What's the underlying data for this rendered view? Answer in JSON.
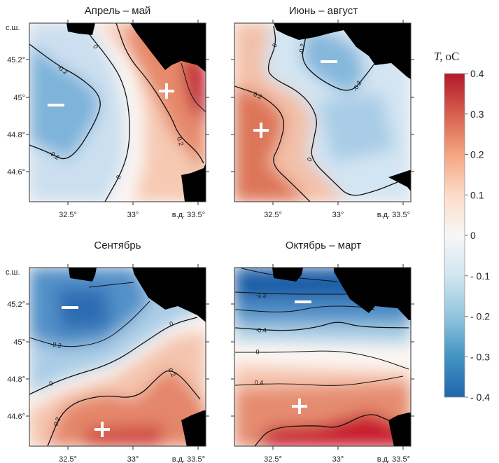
{
  "figure": {
    "panels": [
      {
        "title": "Апрель – май",
        "contour_labels": [
          "0",
          "-0.2",
          "-0.2",
          "0.2",
          "0"
        ],
        "signs": [
          "−",
          "+"
        ]
      },
      {
        "title": "Июнь – август",
        "contour_labels": [
          "0",
          "-0.2",
          "-0.2",
          "0.2",
          "0"
        ],
        "signs": [
          "−",
          "+"
        ]
      },
      {
        "title": "Сентябрь",
        "contour_labels": [
          "-0.2",
          "0",
          "0.2",
          "0",
          "0.2"
        ],
        "signs": [
          "−",
          "+"
        ]
      },
      {
        "title": "Октябрь – март",
        "contour_labels": [
          "-1.2",
          "-0.4",
          "0",
          "0.4"
        ],
        "signs": [
          "−",
          "+"
        ]
      }
    ],
    "lat_axis": {
      "unit_label": "с.ш.",
      "ticks": [
        "45.2°",
        "45°",
        "44.8°",
        "44.6°"
      ]
    },
    "lon_axis": {
      "ticks": [
        "32.5°",
        "33°",
        "в.д. 33.5°"
      ]
    },
    "colorbar": {
      "title_var": "T,",
      "title_unit": "oC",
      "range": [
        -0.4,
        0.4
      ],
      "ticks": [
        "0.4",
        "0.3",
        "0.2",
        "0.1",
        "0",
        "- 0.1",
        "- 0.2",
        "- 0.3",
        "- 0.4"
      ],
      "colors": [
        "#b2182b",
        "#d6604d",
        "#f4a582",
        "#fddbc7",
        "#f7f7f7",
        "#d1e5f0",
        "#92c5de",
        "#4393c3",
        "#2166ac"
      ]
    },
    "land_color": "#000000"
  }
}
